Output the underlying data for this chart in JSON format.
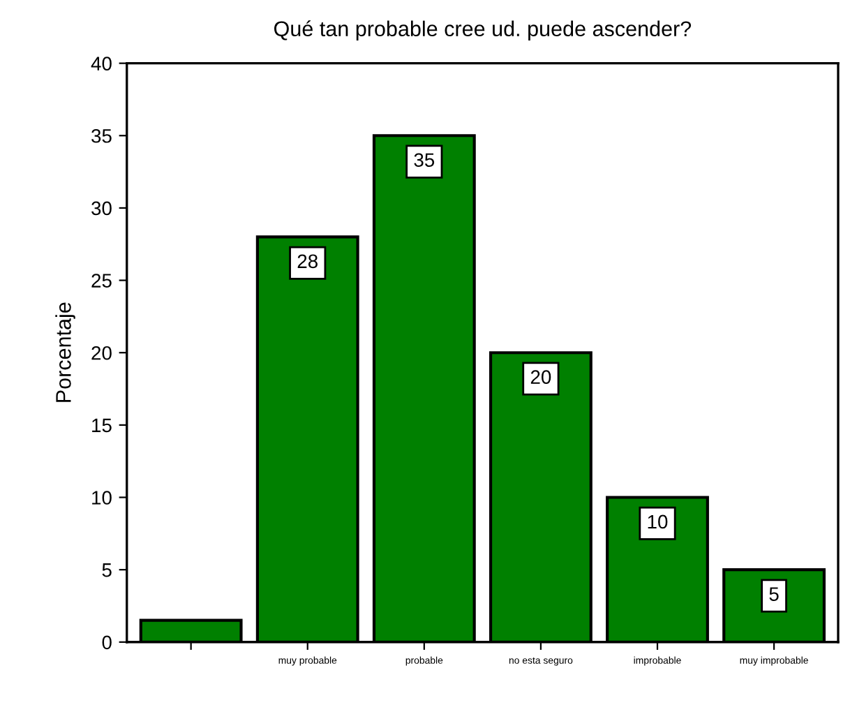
{
  "chart_data": {
    "type": "bar",
    "title": "Qué tan probable cree ud. puede ascender?",
    "ylabel": "Porcentaje",
    "categories": [
      null,
      "muy probable",
      "probable",
      "no esta seguro",
      "improbable",
      "muy improbable"
    ],
    "values": [
      1.5,
      28,
      35,
      20,
      10,
      5
    ],
    "value_labels": [
      null,
      "28",
      "35",
      "20",
      "10",
      "5"
    ],
    "color": "#008000",
    "ylim": [
      0,
      40
    ],
    "yticks": [
      0,
      5,
      10,
      15,
      20,
      25,
      30,
      35,
      40
    ],
    "grid": false,
    "legend": false
  }
}
